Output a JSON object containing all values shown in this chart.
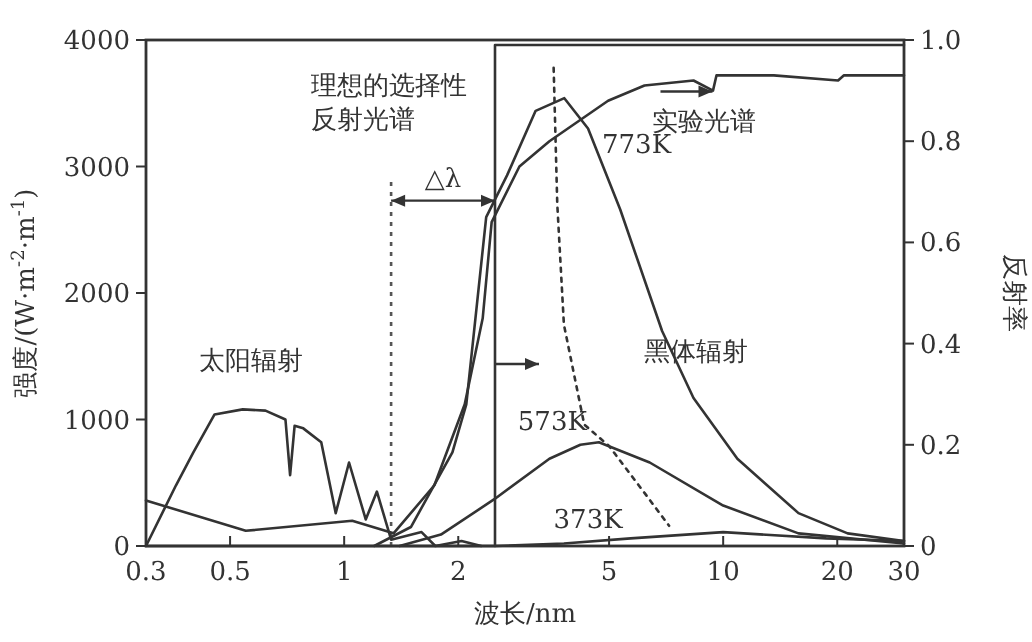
{
  "chart_data": {
    "type": "line",
    "xlabel": "波长/nm",
    "ylabel": "强度/(W·m$^{-2}$·m$^{-1}$)",
    "y2label": "反射率",
    "log": "x",
    "xlim": [
      0.3,
      30
    ],
    "xticks": [
      0.3,
      0.5,
      1,
      2,
      5,
      10,
      20,
      30
    ],
    "ylim": [
      0,
      4000
    ],
    "yticks": [
      0,
      1000,
      2000,
      3000,
      4000
    ],
    "y2lim": [
      0,
      1
    ],
    "y2ticks": [
      0,
      0.2,
      0.4,
      0.6,
      0.8,
      {
        "value": 1,
        "label": "1.0"
      }
    ],
    "series": [
      {
        "name": "太阳辐射",
        "color": "#333333",
        "x": [
          0.3,
          0.36,
          0.4,
          0.455,
          0.54,
          0.62,
          0.7,
          0.72,
          0.74,
          0.78,
          0.87,
          0.95,
          1.03,
          1.14,
          1.22,
          1.33,
          1.6,
          1.74,
          2.04,
          2.3
        ],
        "values": [
          0,
          480,
          740,
          1040,
          1080,
          1070,
          1000,
          560,
          950,
          930,
          820,
          260,
          660,
          210,
          430,
          50,
          110,
          0,
          40,
          0
        ]
      },
      {
        "name": "773K",
        "color": "#333333",
        "x": [
          1.2,
          1.5,
          1.93,
          2.1,
          2.37,
          2.69,
          3.2,
          3.81,
          4.4,
          5.35,
          6.9,
          8.35,
          10.9,
          15.8,
          21.3,
          30
        ],
        "values": [
          0,
          150,
          740,
          1120,
          2600,
          2930,
          3440,
          3540,
          3300,
          2660,
          1700,
          1170,
          690,
          260,
          100,
          40
        ]
      },
      {
        "name": "573K",
        "color": "#333333",
        "x": [
          1.4,
          1.8,
          2.49,
          3.48,
          4.2,
          4.7,
          6.4,
          10,
          15.8,
          30
        ],
        "values": [
          0,
          90,
          370,
          690,
          800,
          820,
          660,
          320,
          100,
          20
        ]
      },
      {
        "name": "373K",
        "color": "#333333",
        "x": [
          2.5,
          3.8,
          5.7,
          10,
          18.7,
          30
        ],
        "values": [
          0,
          20,
          60,
          110,
          60,
          40
        ]
      },
      {
        "color": "#333333",
        "line_style": "dotted",
        "x": [
          3.57,
          3.65,
          3.8,
          4.3,
          5,
          6.2,
          7.2
        ],
        "values": [
          3780,
          2700,
          1750,
          960,
          790,
          420,
          160
        ]
      },
      {
        "name": "实验光谱",
        "color": "#333333",
        "axis": "y2",
        "x": [
          0.3,
          0.55,
          1.05,
          1.35,
          1.73,
          2.08,
          2.32,
          2.45,
          2.9,
          3.48,
          4.97,
          6.2,
          8.35,
          9.4,
          9.6,
          13.6,
          20.1,
          20.8,
          30
        ],
        "values": [
          0.09,
          0.03,
          0.05,
          0.025,
          0.12,
          0.28,
          0.45,
          0.64,
          0.75,
          0.8,
          0.88,
          0.91,
          0.92,
          0.9,
          0.93,
          0.93,
          0.92,
          0.93,
          0.93
        ]
      },
      {
        "name": "理想的选择性反射光谱",
        "color": "#333333",
        "axis": "y2",
        "x": [
          0.3,
          2.5,
          2.5,
          30
        ],
        "values": [
          0,
          0,
          0.99,
          0.99
        ]
      }
    ],
    "ref_lines": [
      {
        "axis": "x",
        "value": 1.33,
        "line_style": "dotted",
        "color": "#555555"
      }
    ],
    "annotations": [
      "黑体辐射",
      {
        "text": "△λ",
        "x": 2.5,
        "y": 2730
      }
    ]
  }
}
